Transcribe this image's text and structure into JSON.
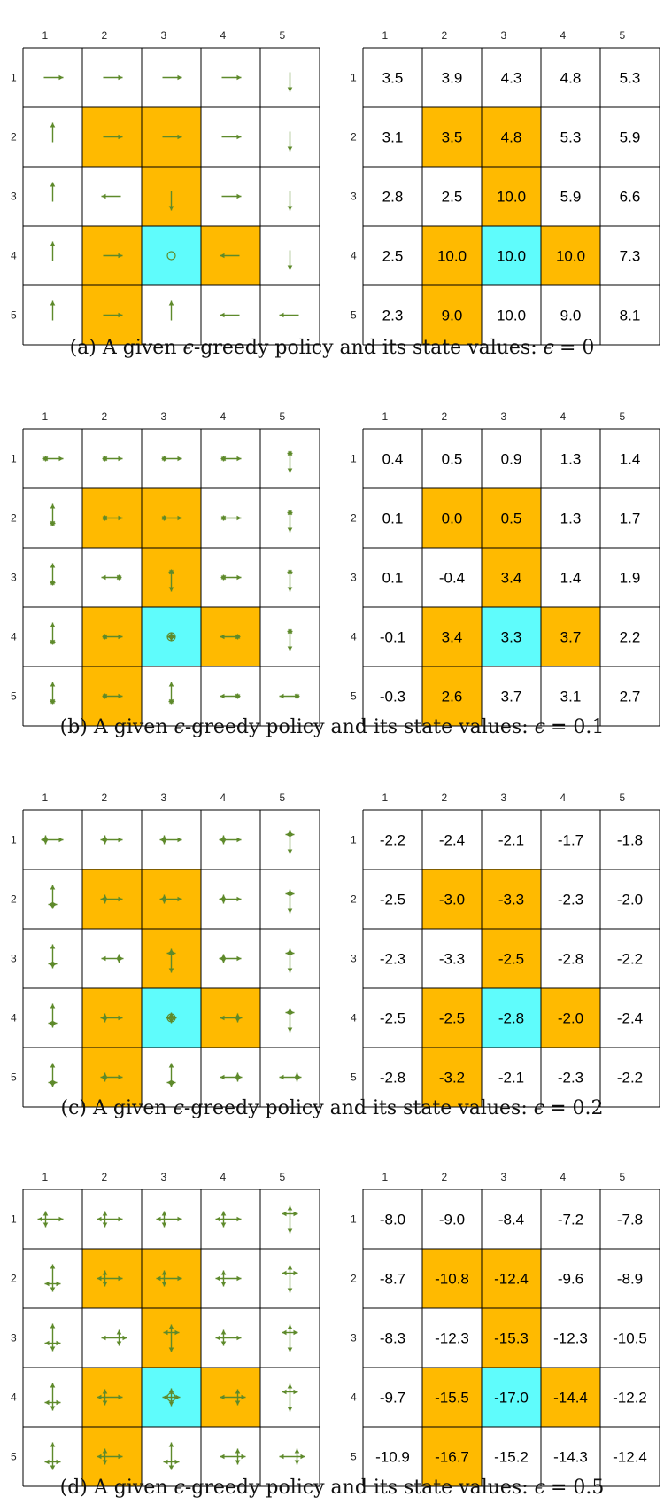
{
  "colors": {
    "obstacle": "#ffba00",
    "target": "#5ffcfc",
    "arrow": "#5e8a2b",
    "grid_line": "#000000"
  },
  "grid": {
    "column_labels": [
      "1",
      "2",
      "3",
      "4",
      "5"
    ],
    "row_labels": [
      "1",
      "2",
      "3",
      "4",
      "5"
    ],
    "obstacle_cells": [
      [
        2,
        2
      ],
      [
        2,
        3
      ],
      [
        3,
        3
      ],
      [
        4,
        2
      ],
      [
        4,
        4
      ],
      [
        5,
        2
      ]
    ],
    "target_cell": [
      4,
      3
    ]
  },
  "policy": [
    [
      "right",
      "right",
      "right",
      "right",
      "down"
    ],
    [
      "up",
      "right",
      "right",
      "right",
      "down"
    ],
    [
      "up",
      "left",
      "down",
      "right",
      "down"
    ],
    [
      "up",
      "right",
      "stay",
      "left",
      "down"
    ],
    [
      "up",
      "right",
      "up",
      "left",
      "left"
    ]
  ],
  "panels": [
    {
      "id": "a",
      "caption_text": "(a) A given ",
      "epsilon_symbol": "ϵ",
      "caption_rest": "-greedy policy and its state values: ",
      "epsilon_value_text": "= 0",
      "policy_style": "deterministic",
      "values": [
        [
          "3.5",
          "3.9",
          "4.3",
          "4.8",
          "5.3"
        ],
        [
          "3.1",
          "3.5",
          "4.8",
          "5.3",
          "5.9"
        ],
        [
          "2.8",
          "2.5",
          "10.0",
          "5.9",
          "6.6"
        ],
        [
          "2.5",
          "10.0",
          "10.0",
          "10.0",
          "7.3"
        ],
        [
          "2.3",
          "9.0",
          "10.0",
          "9.0",
          "8.1"
        ]
      ]
    },
    {
      "id": "b",
      "caption_text": "(b) A given ",
      "epsilon_symbol": "ϵ",
      "caption_rest": "-greedy policy and its state values: ",
      "epsilon_value_text": "= 0.1",
      "policy_style": "soft-low",
      "values": [
        [
          "0.4",
          "0.5",
          "0.9",
          "1.3",
          "1.4"
        ],
        [
          "0.1",
          "0.0",
          "0.5",
          "1.3",
          "1.7"
        ],
        [
          "0.1",
          "-0.4",
          "3.4",
          "1.4",
          "1.9"
        ],
        [
          "-0.1",
          "3.4",
          "3.3",
          "3.7",
          "2.2"
        ],
        [
          "-0.3",
          "2.6",
          "3.7",
          "3.1",
          "2.7"
        ]
      ]
    },
    {
      "id": "c",
      "caption_text": "(c) A given ",
      "epsilon_symbol": "ϵ",
      "caption_rest": "-greedy policy and its state values: ",
      "epsilon_value_text": "= 0.2",
      "policy_style": "soft-mid",
      "values": [
        [
          "-2.2",
          "-2.4",
          "-2.1",
          "-1.7",
          "-1.8"
        ],
        [
          "-2.5",
          "-3.0",
          "-3.3",
          "-2.3",
          "-2.0"
        ],
        [
          "-2.3",
          "-3.3",
          "-2.5",
          "-2.8",
          "-2.2"
        ],
        [
          "-2.5",
          "-2.5",
          "-2.8",
          "-2.0",
          "-2.4"
        ],
        [
          "-2.8",
          "-3.2",
          "-2.1",
          "-2.3",
          "-2.2"
        ]
      ]
    },
    {
      "id": "d",
      "caption_text": "(d) A given ",
      "epsilon_symbol": "ϵ",
      "caption_rest": "-greedy policy and its state values: ",
      "epsilon_value_text": "= 0.5",
      "policy_style": "soft-high",
      "values": [
        [
          "-8.0",
          "-9.0",
          "-8.4",
          "-7.2",
          "-7.8"
        ],
        [
          "-8.7",
          "-10.8",
          "-12.4",
          "-9.6",
          "-8.9"
        ],
        [
          "-8.3",
          "-12.3",
          "-15.3",
          "-12.3",
          "-10.5"
        ],
        [
          "-9.7",
          "-15.5",
          "-17.0",
          "-14.4",
          "-12.2"
        ],
        [
          "-10.9",
          "-16.7",
          "-15.2",
          "-14.3",
          "-12.4"
        ]
      ]
    }
  ]
}
